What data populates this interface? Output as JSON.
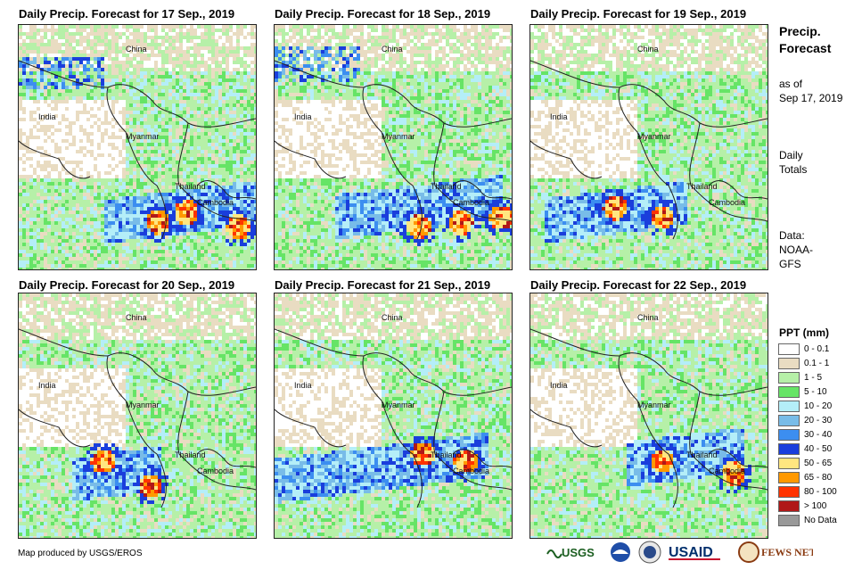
{
  "panels": [
    {
      "title": "Daily Precip. Forecast for 17 Sep., 2019"
    },
    {
      "title": "Daily Precip. Forecast for 18 Sep., 2019"
    },
    {
      "title": "Daily Precip. Forecast for 19 Sep., 2019"
    },
    {
      "title": "Daily Precip. Forecast for 20 Sep., 2019"
    },
    {
      "title": "Daily Precip. Forecast for 21 Sep., 2019"
    },
    {
      "title": "Daily Precip. Forecast for 22 Sep., 2019"
    }
  ],
  "map_labels": {
    "china": "China",
    "india": "India",
    "myanmar": "Myanmar",
    "thailand": "Thailand",
    "cambodia": "Cambodia"
  },
  "sidebar": {
    "title_line1": "Precip.",
    "title_line2": "Forecast",
    "asof_line1": "as of",
    "asof_line2": "Sep 17, 2019",
    "daily_line1": "Daily",
    "daily_line2": "Totals",
    "data_line1": "Data:",
    "data_line2": "NOAA-",
    "data_line3": "GFS"
  },
  "legend": {
    "title": "PPT (mm)",
    "items": [
      {
        "label": "0 - 0.1",
        "color": "#ffffff"
      },
      {
        "label": "0.1 - 1",
        "color": "#e9dcc2"
      },
      {
        "label": "1 - 5",
        "color": "#b6f0a8"
      },
      {
        "label": "5 - 10",
        "color": "#66e466"
      },
      {
        "label": "10 - 20",
        "color": "#b4eef8"
      },
      {
        "label": "20 - 30",
        "color": "#78bce8"
      },
      {
        "label": "30 - 40",
        "color": "#3c8ef0"
      },
      {
        "label": "40 - 50",
        "color": "#1a3edc"
      },
      {
        "label": "50 - 65",
        "color": "#ffe680"
      },
      {
        "label": "65 - 80",
        "color": "#ff9900"
      },
      {
        "label": "80 - 100",
        "color": "#ff3300"
      },
      {
        "label": "> 100",
        "color": "#b01818"
      },
      {
        "label": "No Data",
        "color": "#999999"
      }
    ]
  },
  "credit": "Map produced by USGS/EROS",
  "logos": {
    "usgs": "USGS",
    "usaid": "USAID",
    "fewsnet": "FEWS NET"
  }
}
